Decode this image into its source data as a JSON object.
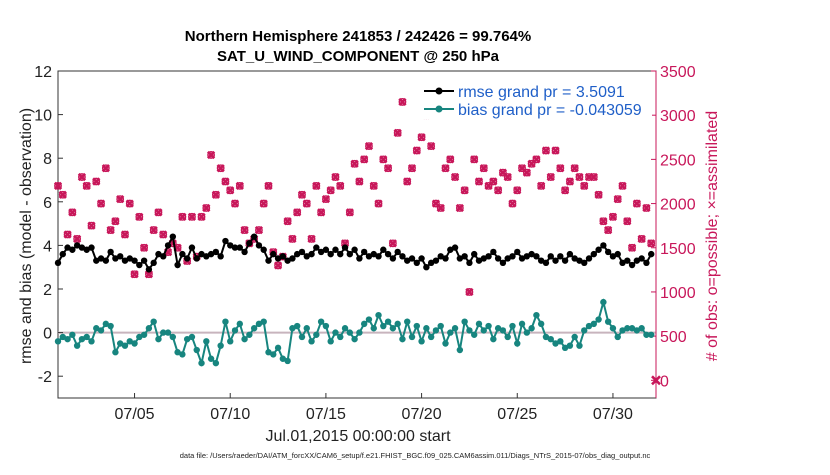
{
  "chart_data": {
    "type": "line",
    "title": "Northern Hemisphere 241853 / 242426 = 99.764%",
    "subtitle": "SAT_U_WIND_COMPONENT @ 250 hPa",
    "xlabel": "Jul.01,2015 00:00:00 start",
    "ylabel": "rmse and bias (model - observation)",
    "ylabel_right": "# of obs: o=possible; ×=assimilated",
    "xlim": [
      1.0,
      32.25
    ],
    "ylim": [
      -3,
      12
    ],
    "ylim_right": [
      -200,
      3500
    ],
    "x_ticks": [
      {
        "x": 5,
        "label": "07/05"
      },
      {
        "x": 10,
        "label": "07/10"
      },
      {
        "x": 15,
        "label": "07/15"
      },
      {
        "x": 20,
        "label": "07/20"
      },
      {
        "x": 25,
        "label": "07/25"
      },
      {
        "x": 30,
        "label": "07/30"
      }
    ],
    "y_ticks": [
      "-2",
      "0",
      "2",
      "4",
      "6",
      "8",
      "10",
      "12"
    ],
    "y_ticks_right": [
      "0",
      "500",
      "1000",
      "1500",
      "2000",
      "2500",
      "3000",
      "3500"
    ],
    "legend_location": "top-right",
    "series": [
      {
        "name": "rmse grand pr = 3.5091",
        "color": "#000000",
        "axis": "left",
        "x": [
          1.0,
          1.25,
          1.5,
          1.75,
          2.0,
          2.25,
          2.5,
          2.75,
          3.0,
          3.25,
          3.5,
          3.75,
          4.0,
          4.25,
          4.5,
          4.75,
          5.0,
          5.25,
          5.5,
          5.75,
          6.0,
          6.25,
          6.5,
          6.75,
          7.0,
          7.25,
          7.5,
          7.75,
          8.0,
          8.25,
          8.5,
          8.75,
          9.0,
          9.25,
          9.5,
          9.75,
          10.0,
          10.25,
          10.5,
          10.75,
          11.0,
          11.25,
          11.5,
          11.75,
          12.0,
          12.25,
          12.5,
          12.75,
          13.0,
          13.25,
          13.5,
          13.75,
          14.0,
          14.25,
          14.5,
          14.75,
          15.0,
          15.25,
          15.5,
          15.75,
          16.0,
          16.25,
          16.5,
          16.75,
          17.0,
          17.25,
          17.5,
          17.75,
          18.0,
          18.25,
          18.5,
          18.75,
          19.0,
          19.25,
          19.5,
          19.75,
          20.0,
          20.25,
          20.5,
          20.75,
          21.0,
          21.25,
          21.5,
          21.75,
          22.0,
          22.25,
          22.5,
          22.75,
          23.0,
          23.25,
          23.5,
          23.75,
          24.0,
          24.25,
          24.5,
          24.75,
          25.0,
          25.25,
          25.5,
          25.75,
          26.0,
          26.25,
          26.5,
          26.75,
          27.0,
          27.25,
          27.5,
          27.75,
          28.0,
          28.25,
          28.5,
          28.75,
          29.0,
          29.25,
          29.5,
          29.75,
          30.0,
          30.25,
          30.5,
          30.75,
          31.0,
          31.25,
          31.5,
          31.75,
          32.0
        ],
        "y": [
          3.2,
          3.6,
          3.9,
          3.8,
          4.0,
          3.9,
          3.8,
          3.9,
          3.3,
          3.4,
          3.3,
          3.7,
          3.4,
          3.5,
          3.3,
          3.4,
          3.3,
          3.1,
          3.3,
          2.9,
          3.2,
          3.6,
          3.5,
          4.0,
          4.4,
          3.1,
          3.6,
          3.4,
          3.9,
          3.4,
          3.6,
          3.5,
          3.6,
          3.7,
          3.5,
          4.2,
          4.0,
          3.9,
          3.9,
          3.7,
          4.1,
          4.4,
          4.0,
          3.8,
          3.3,
          3.6,
          3.4,
          3.5,
          3.3,
          3.4,
          3.6,
          3.7,
          3.5,
          3.6,
          3.9,
          3.7,
          3.8,
          3.6,
          3.8,
          3.6,
          3.9,
          3.6,
          3.8,
          3.4,
          3.7,
          3.5,
          3.6,
          3.5,
          3.8,
          3.6,
          3.4,
          3.7,
          3.5,
          3.3,
          3.4,
          3.2,
          3.4,
          3.0,
          3.2,
          3.3,
          3.5,
          3.4,
          3.8,
          3.9,
          3.4,
          3.5,
          3.2,
          3.6,
          3.3,
          3.4,
          3.5,
          3.7,
          3.4,
          3.2,
          3.4,
          3.5,
          3.7,
          3.4,
          3.5,
          3.6,
          3.5,
          3.3,
          3.2,
          3.5,
          3.3,
          3.5,
          3.3,
          3.6,
          3.4,
          3.3,
          3.2,
          3.4,
          3.6,
          3.8,
          4.0,
          3.7,
          3.5,
          3.6,
          3.2,
          3.3,
          3.1,
          3.3,
          3.4,
          3.2,
          3.6
        ]
      },
      {
        "name": "bias grand pr = -0.043059",
        "color": "#17857f",
        "axis": "left",
        "x": [
          1.0,
          1.25,
          1.5,
          1.75,
          2.0,
          2.25,
          2.5,
          2.75,
          3.0,
          3.25,
          3.5,
          3.75,
          4.0,
          4.25,
          4.5,
          4.75,
          5.0,
          5.25,
          5.5,
          5.75,
          6.0,
          6.25,
          6.5,
          6.75,
          7.0,
          7.25,
          7.5,
          7.75,
          8.0,
          8.25,
          8.5,
          8.75,
          9.0,
          9.25,
          9.5,
          9.75,
          10.0,
          10.25,
          10.5,
          10.75,
          11.0,
          11.25,
          11.5,
          11.75,
          12.0,
          12.25,
          12.5,
          12.75,
          13.0,
          13.25,
          13.5,
          13.75,
          14.0,
          14.25,
          14.5,
          14.75,
          15.0,
          15.25,
          15.5,
          15.75,
          16.0,
          16.25,
          16.5,
          16.75,
          17.0,
          17.25,
          17.5,
          17.75,
          18.0,
          18.25,
          18.5,
          18.75,
          19.0,
          19.25,
          19.5,
          19.75,
          20.0,
          20.25,
          20.5,
          20.75,
          21.0,
          21.25,
          21.5,
          21.75,
          22.0,
          22.25,
          22.5,
          22.75,
          23.0,
          23.25,
          23.5,
          23.75,
          24.0,
          24.25,
          24.5,
          24.75,
          25.0,
          25.25,
          25.5,
          25.75,
          26.0,
          26.25,
          26.5,
          26.75,
          27.0,
          27.25,
          27.5,
          27.75,
          28.0,
          28.25,
          28.5,
          28.75,
          29.0,
          29.25,
          29.5,
          29.75,
          30.0,
          30.25,
          30.5,
          30.75,
          31.0,
          31.25,
          31.5,
          31.75,
          32.0
        ],
        "y": [
          -0.4,
          -0.2,
          -0.3,
          -0.1,
          -0.6,
          -0.3,
          -0.2,
          -0.4,
          0.2,
          0.1,
          0.4,
          0.3,
          -0.9,
          -0.5,
          -0.6,
          -0.4,
          -0.5,
          -0.2,
          -0.1,
          0.2,
          0.5,
          -0.3,
          0.0,
          0.0,
          -0.2,
          -0.9,
          -1.0,
          -0.3,
          -0.2,
          -0.8,
          -1.4,
          -0.4,
          -1.2,
          -1.4,
          -0.6,
          0.5,
          -0.4,
          0.1,
          0.4,
          -0.3,
          -0.1,
          0.2,
          0.4,
          0.5,
          -0.9,
          -1.0,
          -0.7,
          -1.2,
          -1.3,
          0.2,
          0.3,
          -0.2,
          0.2,
          -0.4,
          -0.1,
          0.5,
          0.3,
          -0.4,
          0.0,
          -0.2,
          0.2,
          0.0,
          -0.3,
          0.0,
          0.4,
          0.6,
          0.2,
          0.8,
          0.3,
          0.5,
          0.2,
          0.4,
          -0.3,
          0.5,
          -0.2,
          0.3,
          -0.4,
          0.2,
          -0.2,
          0.1,
          0.3,
          -0.5,
          0.0,
          0.2,
          -0.8,
          0.5,
          0.1,
          -0.1,
          0.4,
          0.1,
          0.3,
          -0.3,
          0.2,
          0.1,
          -0.2,
          0.3,
          -0.5,
          0.4,
          0.0,
          0.2,
          0.8,
          0.4,
          -0.2,
          -0.3,
          -0.5,
          -0.4,
          -0.7,
          -0.6,
          -0.2,
          -0.6,
          0.1,
          0.3,
          0.4,
          0.6,
          1.4,
          0.5,
          0.2,
          -0.2,
          0.1,
          0.2,
          0.2,
          0.1,
          0.2,
          -0.1,
          -0.1
        ]
      },
      {
        "name": "obs assimilated",
        "color": "#c8175a",
        "axis": "right",
        "marker": "x",
        "x": [
          1.0,
          1.25,
          1.5,
          1.75,
          2.0,
          2.25,
          2.5,
          2.75,
          3.0,
          3.25,
          3.5,
          3.75,
          4.0,
          4.25,
          4.5,
          4.75,
          5.0,
          5.25,
          5.5,
          5.75,
          6.0,
          6.25,
          6.5,
          6.75,
          7.0,
          7.25,
          7.5,
          7.75,
          8.0,
          8.25,
          8.5,
          8.75,
          9.0,
          9.25,
          9.5,
          9.75,
          10.0,
          10.25,
          10.5,
          10.75,
          11.0,
          11.25,
          11.5,
          11.75,
          12.0,
          12.25,
          12.5,
          12.75,
          13.0,
          13.25,
          13.5,
          13.75,
          14.0,
          14.25,
          14.5,
          14.75,
          15.0,
          15.25,
          15.5,
          15.75,
          16.0,
          16.25,
          16.5,
          16.75,
          17.0,
          17.25,
          17.5,
          17.75,
          18.0,
          18.25,
          18.5,
          18.75,
          19.0,
          19.25,
          19.5,
          19.75,
          20.0,
          20.25,
          20.5,
          20.75,
          21.0,
          21.25,
          21.5,
          21.75,
          22.0,
          22.25,
          22.5,
          22.75,
          23.0,
          23.25,
          23.5,
          23.75,
          24.0,
          24.25,
          24.5,
          24.75,
          25.0,
          25.25,
          25.5,
          25.75,
          26.0,
          26.25,
          26.5,
          26.75,
          27.0,
          27.25,
          27.5,
          27.75,
          28.0,
          28.25,
          28.5,
          28.75,
          29.0,
          29.25,
          29.5,
          29.75,
          30.0,
          30.25,
          30.5,
          30.75,
          31.0,
          31.25,
          31.5,
          31.75,
          32.0
        ],
        "y": [
          2200,
          2100,
          1650,
          1900,
          1600,
          2300,
          2200,
          1750,
          2250,
          2000,
          2400,
          1700,
          1800,
          2050,
          1650,
          2000,
          1200,
          1850,
          1500,
          1200,
          1700,
          1900,
          1650,
          1450,
          1550,
          1500,
          1850,
          1350,
          1850,
          1400,
          1850,
          1950,
          2550,
          2100,
          2400,
          2250,
          2150,
          2000,
          2200,
          1700,
          1550,
          1600,
          1700,
          2000,
          2200,
          1450,
          1300,
          1400,
          1800,
          1600,
          1900,
          2100,
          2000,
          1600,
          2200,
          1900,
          2050,
          2150,
          2300,
          2200,
          1550,
          1900,
          2450,
          2250,
          2500,
          2650,
          2200,
          2000,
          2500,
          2400,
          1550,
          2800,
          3150,
          2250,
          2400,
          2600,
          2750,
          3000,
          2650,
          2000,
          1950,
          2400,
          2500,
          2300,
          1950,
          2150,
          1000,
          2500,
          2250,
          2400,
          2200,
          2250,
          2150,
          2350,
          2300,
          2000,
          2150,
          2400,
          2350,
          2450,
          2500,
          2200,
          2600,
          2300,
          2600,
          2400,
          2150,
          2250,
          2400,
          2300,
          2200,
          2300,
          2300,
          2100,
          1800,
          1700,
          1850,
          2050,
          2200,
          1800,
          1500,
          2000,
          1600,
          1950,
          1550
        ]
      },
      {
        "name": "obs possible",
        "color": "#c8175a",
        "axis": "right",
        "marker": "o",
        "x": [
          1.0,
          1.25,
          1.5,
          1.75,
          2.0,
          2.25,
          2.5,
          2.75,
          3.0,
          3.25,
          3.5,
          3.75,
          4.0,
          4.25,
          4.5,
          4.75,
          5.0,
          5.25,
          5.5,
          5.75,
          6.0,
          6.25,
          6.5,
          6.75,
          7.0,
          7.25,
          7.5,
          7.75,
          8.0,
          8.25,
          8.5,
          8.75,
          9.0,
          9.25,
          9.5,
          9.75,
          10.0,
          10.25,
          10.5,
          10.75,
          11.0,
          11.25,
          11.5,
          11.75,
          12.0,
          12.25,
          12.5,
          12.75,
          13.0,
          13.25,
          13.5,
          13.75,
          14.0,
          14.25,
          14.5,
          14.75,
          15.0,
          15.25,
          15.5,
          15.75,
          16.0,
          16.25,
          16.5,
          16.75,
          17.0,
          17.25,
          17.5,
          17.75,
          18.0,
          18.25,
          18.5,
          18.75,
          19.0,
          19.25,
          19.5,
          19.75,
          20.0,
          20.25,
          20.5,
          20.75,
          21.0,
          21.25,
          21.5,
          21.75,
          22.0,
          22.25,
          22.5,
          22.75,
          23.0,
          23.25,
          23.5,
          23.75,
          24.0,
          24.25,
          24.5,
          24.75,
          25.0,
          25.25,
          25.5,
          25.75,
          26.0,
          26.25,
          26.5,
          26.75,
          27.0,
          27.25,
          27.5,
          27.75,
          28.0,
          28.25,
          28.5,
          28.75,
          29.0,
          29.25,
          29.5,
          29.75,
          30.0,
          30.25,
          30.5,
          30.75,
          31.0,
          31.25,
          31.5,
          31.75,
          32.0
        ],
        "y": [
          2200,
          2100,
          1650,
          1900,
          1600,
          2300,
          2200,
          1750,
          2250,
          2000,
          2400,
          1700,
          1800,
          2050,
          1650,
          2000,
          1200,
          1850,
          1500,
          1200,
          1700,
          1900,
          1650,
          1450,
          1550,
          1500,
          1850,
          1350,
          1850,
          1400,
          1850,
          1950,
          2550,
          2100,
          2400,
          2250,
          2150,
          2000,
          2200,
          1700,
          1550,
          1600,
          1700,
          2000,
          2200,
          1450,
          1300,
          1400,
          1800,
          1600,
          1900,
          2100,
          2000,
          1600,
          2200,
          1900,
          2050,
          2150,
          2300,
          2200,
          1550,
          1900,
          2450,
          2250,
          2500,
          2650,
          2200,
          2000,
          2500,
          2400,
          1550,
          2800,
          3150,
          2250,
          2400,
          2600,
          2750,
          3000,
          2650,
          2000,
          1950,
          2400,
          2500,
          2300,
          1950,
          2150,
          1000,
          2500,
          2250,
          2400,
          2200,
          2250,
          2150,
          2350,
          2300,
          2000,
          2150,
          2400,
          2350,
          2450,
          2500,
          2200,
          2600,
          2300,
          2600,
          2400,
          2150,
          2250,
          2400,
          2300,
          2200,
          2300,
          2300,
          2100,
          1800,
          1700,
          1850,
          2050,
          2200,
          1800,
          1500,
          2000,
          1600,
          1950,
          1550
        ]
      }
    ],
    "right_axis_outlier_label": "0"
  },
  "footer": {
    "data_file": "data file: /Users/raeder/DAI/ATM_forcXX/CAM6_setup/f.e21.FHIST_BGC.f09_025.CAM6assim.011/Diags_NTrS_2015-07/obs_diag_output.nc"
  },
  "colors": {
    "rmse": "#000000",
    "bias": "#17857f",
    "obs": "#c8175a",
    "legend_text": "#1f5fc8",
    "zero_line": "#c8b4bd"
  }
}
